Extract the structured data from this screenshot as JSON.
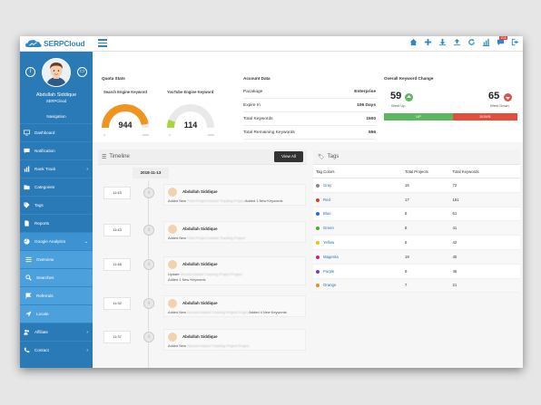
{
  "app": {
    "logo_text": "SERPCloud"
  },
  "topbar": {
    "notification_count": "104"
  },
  "profile": {
    "name": "Abdullah Siddique",
    "org": "SERPCloud"
  },
  "nav": {
    "heading": "Navigation",
    "items": [
      {
        "label": "Dashboard",
        "icon": "monitor-icon"
      },
      {
        "label": "Notification",
        "icon": "chat-icon"
      },
      {
        "label": "Rank Track",
        "icon": "bar-chart-icon",
        "chevron": "›"
      },
      {
        "label": "Categories",
        "icon": "folder-icon"
      },
      {
        "label": "Tags",
        "icon": "tag-icon"
      },
      {
        "label": "Reports",
        "icon": "file-icon"
      },
      {
        "label": "Google Analytics",
        "icon": "pie-chart-icon",
        "chevron": "⌄"
      },
      {
        "label": "Overview",
        "icon": "list-icon"
      },
      {
        "label": "Searches",
        "icon": "search-icon"
      },
      {
        "label": "Referrals",
        "icon": "flag-icon"
      },
      {
        "label": "Locale",
        "icon": "location-icon"
      },
      {
        "label": "Affiliate",
        "icon": "users-icon",
        "chevron": "›"
      },
      {
        "label": "Contact",
        "icon": "phone-icon",
        "chevron": "›"
      }
    ]
  },
  "quota": {
    "title": "Quota Stats",
    "search_engine": {
      "label": "Search Engine Keyword",
      "value": "944",
      "min": "0",
      "max": "1000",
      "fraction": 0.944,
      "color": "#f0941f"
    },
    "youtube": {
      "label": "YouTube Engine Keyword",
      "value": "114",
      "min": "0",
      "max": "1000",
      "fraction": 0.114,
      "color": "#a8d43c"
    }
  },
  "account": {
    "title": "Account Data",
    "rows": [
      {
        "label": "Pacakage",
        "value": "Enterprise"
      },
      {
        "label": "Expire In",
        "value": "106 Days"
      },
      {
        "label": "Total Keywords",
        "value": "1500"
      },
      {
        "label": "Total Remaining Keywords",
        "value": "556"
      }
    ]
  },
  "keyword_change": {
    "title": "Overall Keyword Change",
    "up_value": "59",
    "up_label": "Went Up",
    "down_value": "65",
    "down_label": "Went Down",
    "up_bar": "UP",
    "down_bar": "DOWN"
  },
  "timeline": {
    "title": "Timeline",
    "view_all": "View All",
    "date": "2018-11-13",
    "entries": [
      {
        "time": "11:43",
        "name": "Abdullah Siddique",
        "lines": [
          {
            "pre": "Added New ",
            "blur": "Third Project Instant Tracking Project",
            "post": "Added 1 New Keywords"
          }
        ]
      },
      {
        "time": "11:43",
        "name": "Abdullah Siddique",
        "lines": [
          {
            "pre": "Added New ",
            "blur": "Third Project Instant Tracking Project",
            "post": ""
          }
        ]
      },
      {
        "time": "11:48",
        "name": "Abdullah Siddique",
        "lines": [
          {
            "pre": "Update ",
            "blur": "Second Instant Tracking Project Project",
            "post": ""
          },
          {
            "pre": "Added 1 New Keywords",
            "blur": "",
            "post": ""
          }
        ]
      },
      {
        "time": "11:32",
        "name": "Abdullah Siddique",
        "lines": [
          {
            "pre": "Added New ",
            "blur": "Second Instant Tracking Project Project",
            "post": "Added 4 New Keywords"
          }
        ]
      },
      {
        "time": "11:37",
        "name": "Abdullah Siddique",
        "lines": [
          {
            "pre": "Added New ",
            "blur": "Second Instant Tracking Project Project",
            "post": ""
          }
        ]
      }
    ]
  },
  "tags": {
    "title": "Tags",
    "headers": [
      "Tag Colors",
      "Total Projects",
      "Total Keywords"
    ],
    "rows": [
      {
        "name": "Gray",
        "color": "#888888",
        "projects": "16",
        "keywords": "72"
      },
      {
        "name": "Red",
        "color": "#e53935",
        "projects": "17",
        "keywords": "161"
      },
      {
        "name": "Blue",
        "color": "#1e6fd9",
        "projects": "8",
        "keywords": "61"
      },
      {
        "name": "Green",
        "color": "#43b02a",
        "projects": "8",
        "keywords": "41"
      },
      {
        "name": "Yellow",
        "color": "#f2c200",
        "projects": "6",
        "keywords": "42"
      },
      {
        "name": "Magenta",
        "color": "#d81b8c",
        "projects": "19",
        "keywords": "40"
      },
      {
        "name": "Purple",
        "color": "#7b3fb5",
        "projects": "9",
        "keywords": "46"
      },
      {
        "name": "Orange",
        "color": "#f28a1a",
        "projects": "7",
        "keywords": "21"
      }
    ]
  }
}
